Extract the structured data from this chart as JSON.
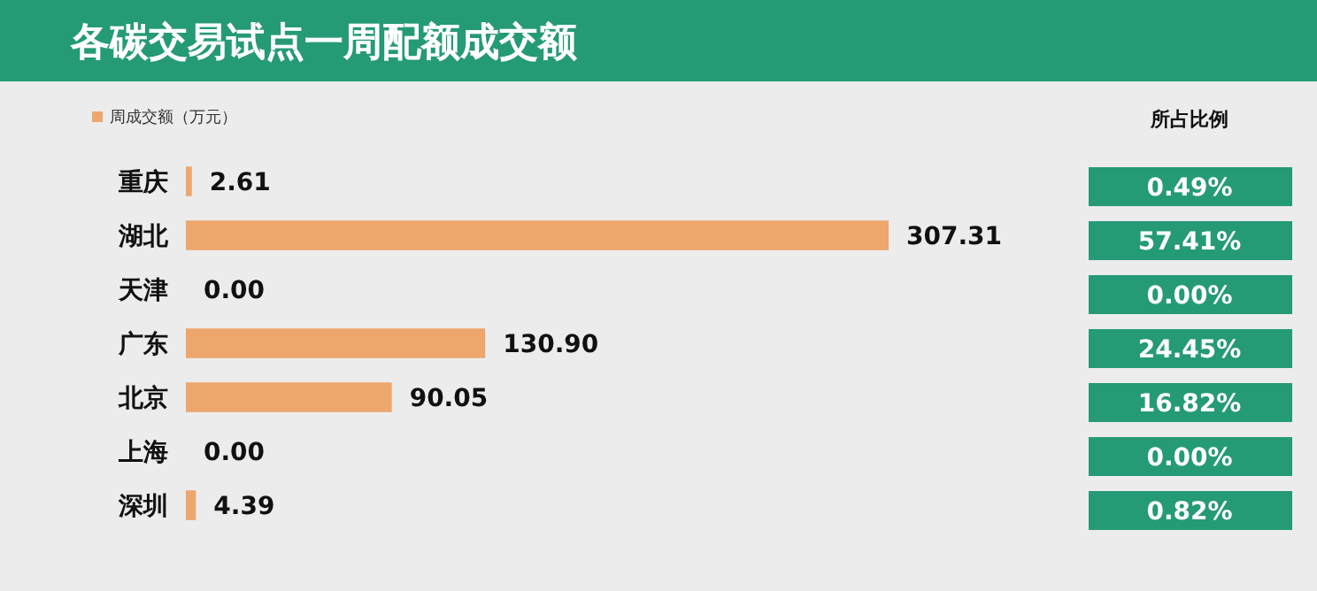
{
  "chart_data": {
    "type": "bar",
    "orientation": "horizontal",
    "title": "各碳交易试点一周配额成交额",
    "categories": [
      "重庆",
      "湖北",
      "天津",
      "广东",
      "北京",
      "上海",
      "深圳"
    ],
    "series": [
      {
        "name": "周成交额（万元）",
        "color": "#eda66c",
        "values": [
          2.61,
          307.31,
          0,
          130.9,
          90.05,
          0,
          4.39
        ],
        "value_labels": [
          "2.61",
          "307.31",
          "0.00",
          "130.90",
          "90.05",
          "0.00",
          "4.39"
        ]
      }
    ],
    "tick_labels": false,
    "legend": "top left",
    "annotations": [
      "所占比例",
      "0.49%",
      "57.41%",
      "0.00%",
      "24.45%",
      "16.82%",
      "0.00%",
      "0.82%"
    ]
  }
}
